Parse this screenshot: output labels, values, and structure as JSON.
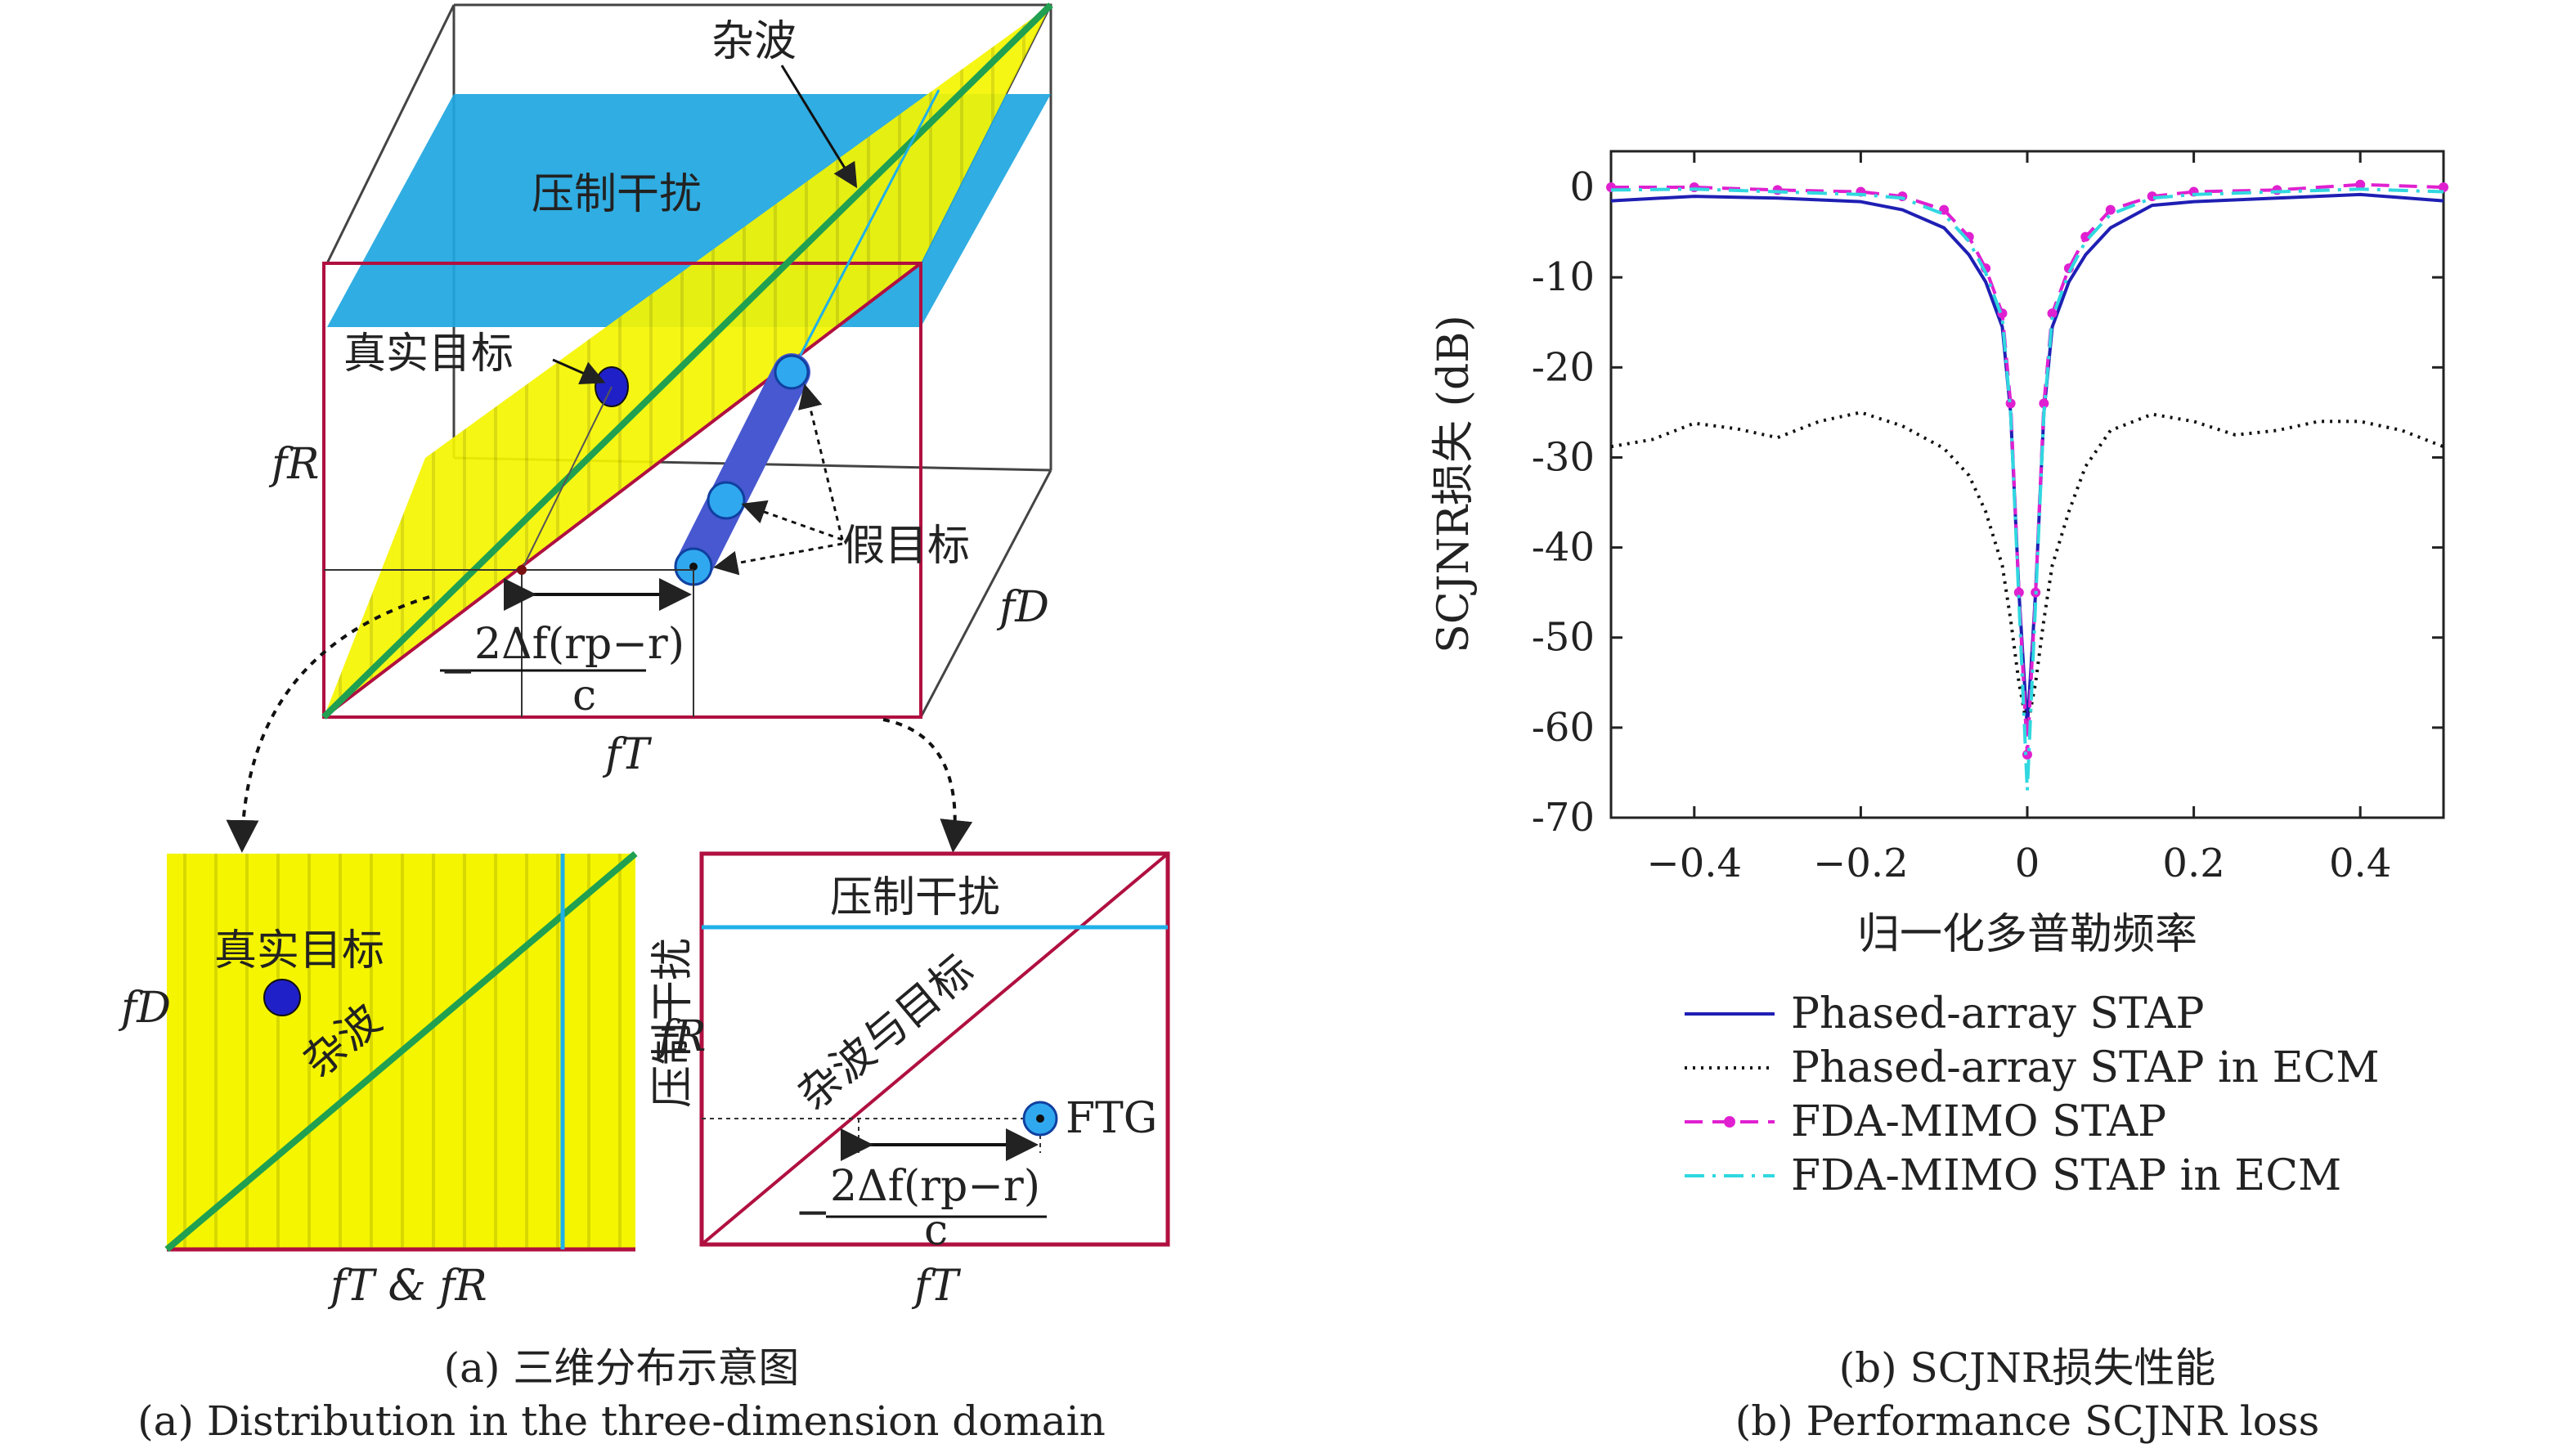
{
  "diagram_a": {
    "labels": {
      "clutter": "杂波",
      "suppression_jamming": "压制干扰",
      "true_target": "真实目标",
      "false_targets": "假目标",
      "axis_fR": "fR",
      "axis_fD": "fD",
      "axis_fT": "fT",
      "offset_formula_num": "2Δf(rp−r)",
      "offset_formula_den": "c",
      "offset_formula_sign": "−",
      "bl_axis_x": "fT & fR",
      "bl_axis_y": "fD",
      "bl_true_target": "真实目标",
      "bl_clutter": "杂波",
      "bl_jamming": "压制干扰",
      "br_jamming": "压制干扰",
      "br_clutter_target": "杂波与目标",
      "br_ftg": "FTG",
      "br_axis_y": "fR",
      "br_axis_x": "fT"
    },
    "caption_cn": "(a) 三维分布示意图",
    "caption_en": "(a) Distribution in the three-dimension domain"
  },
  "chart_b": {
    "caption_cn": "(b) SCJNR损失性能",
    "caption_en": "(b) Performance SCJNR loss"
  },
  "chart_data": {
    "type": "line",
    "xlabel": "归一化多普勒频率",
    "ylabel": "SCJNR损失 (dB)",
    "xlim": [
      -0.5,
      0.5
    ],
    "ylim": [
      -70,
      4
    ],
    "xticks": [
      "−0.4",
      "−0.2",
      "0",
      "0.2",
      "0.4"
    ],
    "yticks": [
      "0",
      "-10",
      "-20",
      "-30",
      "-40",
      "-50",
      "-60",
      "-70"
    ],
    "legend_position": "below",
    "series": [
      {
        "name": "Phased-array STAP",
        "color": "#1f1fb4",
        "style": "solid",
        "x": [
          -0.5,
          -0.4,
          -0.3,
          -0.2,
          -0.15,
          -0.1,
          -0.07,
          -0.05,
          -0.03,
          -0.02,
          -0.01,
          0,
          0.01,
          0.02,
          0.03,
          0.05,
          0.07,
          0.1,
          0.15,
          0.2,
          0.3,
          0.4,
          0.5
        ],
        "y": [
          -1.5,
          -1.0,
          -1.2,
          -1.6,
          -2.5,
          -4.5,
          -7.5,
          -10.5,
          -15.5,
          -25,
          -45,
          -60,
          -45,
          -25,
          -15.5,
          -10.5,
          -7.5,
          -4.5,
          -2.0,
          -1.6,
          -1.2,
          -0.8,
          -1.5
        ]
      },
      {
        "name": "Phased-array STAP in ECM",
        "color": "#111111",
        "style": "dotted",
        "x": [
          -0.5,
          -0.45,
          -0.4,
          -0.35,
          -0.3,
          -0.25,
          -0.2,
          -0.15,
          -0.1,
          -0.07,
          -0.05,
          -0.03,
          -0.02,
          -0.01,
          0,
          0.01,
          0.02,
          0.03,
          0.05,
          0.07,
          0.1,
          0.15,
          0.2,
          0.25,
          0.3,
          0.35,
          0.4,
          0.45,
          0.5
        ],
        "y": [
          -28.8,
          -28,
          -26.2,
          -26.8,
          -27.8,
          -26.0,
          -25.0,
          -26.5,
          -29.0,
          -32,
          -36,
          -42,
          -48,
          -55,
          -60,
          -55,
          -48,
          -42,
          -36,
          -31,
          -27,
          -25.2,
          -26.0,
          -27.5,
          -27.0,
          -26.0,
          -26.0,
          -27.0,
          -28.8
        ]
      },
      {
        "name": "FDA-MIMO STAP",
        "color": "#e020d0",
        "style": "dashed-dot-markers",
        "x": [
          -0.5,
          -0.4,
          -0.3,
          -0.2,
          -0.15,
          -0.1,
          -0.07,
          -0.05,
          -0.03,
          -0.02,
          -0.01,
          0,
          0.01,
          0.02,
          0.03,
          0.05,
          0.07,
          0.1,
          0.15,
          0.2,
          0.3,
          0.4,
          0.5
        ],
        "y": [
          0,
          0,
          -0.3,
          -0.5,
          -1.0,
          -2.5,
          -5.5,
          -9.0,
          -14.0,
          -24,
          -45,
          -63,
          -45,
          -24,
          -14.0,
          -9.0,
          -5.5,
          -2.5,
          -1.0,
          -0.5,
          -0.3,
          0.3,
          0
        ]
      },
      {
        "name": "FDA-MIMO STAP in ECM",
        "color": "#30d8e0",
        "style": "dashdot",
        "x": [
          -0.5,
          -0.4,
          -0.3,
          -0.2,
          -0.15,
          -0.1,
          -0.07,
          -0.05,
          -0.03,
          -0.02,
          -0.01,
          0,
          0.01,
          0.02,
          0.03,
          0.05,
          0.07,
          0.1,
          0.15,
          0.2,
          0.3,
          0.4,
          0.5
        ],
        "y": [
          -0.3,
          -0.2,
          -0.5,
          -0.8,
          -1.2,
          -3.0,
          -6.0,
          -9.5,
          -14.5,
          -25,
          -46,
          -67,
          -46,
          -25,
          -14.5,
          -9.5,
          -6.0,
          -3.0,
          -1.2,
          -0.8,
          -0.5,
          -0.2,
          -0.5
        ]
      }
    ]
  }
}
